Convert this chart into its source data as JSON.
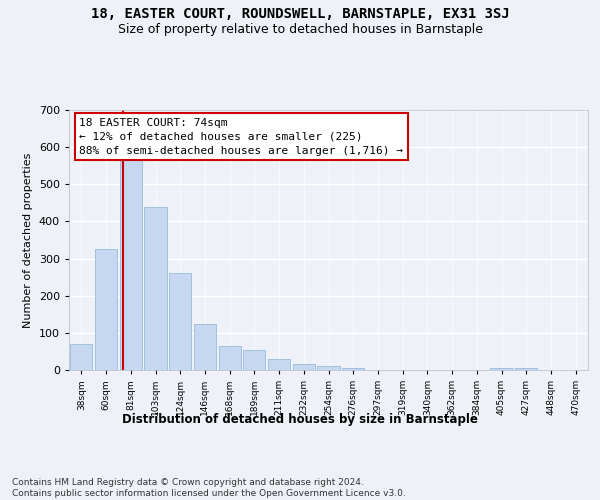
{
  "title1": "18, EASTER COURT, ROUNDSWELL, BARNSTAPLE, EX31 3SJ",
  "title2": "Size of property relative to detached houses in Barnstaple",
  "xlabel": "Distribution of detached houses by size in Barnstaple",
  "ylabel": "Number of detached properties",
  "categories": [
    "38sqm",
    "60sqm",
    "81sqm",
    "103sqm",
    "124sqm",
    "146sqm",
    "168sqm",
    "189sqm",
    "211sqm",
    "232sqm",
    "254sqm",
    "276sqm",
    "297sqm",
    "319sqm",
    "340sqm",
    "362sqm",
    "384sqm",
    "405sqm",
    "427sqm",
    "448sqm",
    "470sqm"
  ],
  "values": [
    70,
    325,
    565,
    440,
    260,
    125,
    65,
    55,
    30,
    16,
    12,
    5,
    0,
    0,
    0,
    0,
    0,
    5,
    5,
    0,
    0
  ],
  "bar_color": "#c5d8f0",
  "bar_edge_color": "#8ab4d8",
  "vline_color": "#cc0000",
  "annotation_text": "18 EASTER COURT: 74sqm\n← 12% of detached houses are smaller (225)\n88% of semi-detached houses are larger (1,716) →",
  "annotation_box_color": "#ffffff",
  "annotation_box_edge": "#cc0000",
  "ylim": [
    0,
    700
  ],
  "yticks": [
    0,
    100,
    200,
    300,
    400,
    500,
    600,
    700
  ],
  "footer": "Contains HM Land Registry data © Crown copyright and database right 2024.\nContains public sector information licensed under the Open Government Licence v3.0.",
  "bg_color": "#eef2f8",
  "plot_bg_color": "#eef2f8",
  "grid_color": "#ffffff",
  "title1_fontsize": 10,
  "title2_fontsize": 9,
  "xlabel_fontsize": 8.5,
  "ylabel_fontsize": 8,
  "annotation_fontsize": 8,
  "footer_fontsize": 6.5
}
